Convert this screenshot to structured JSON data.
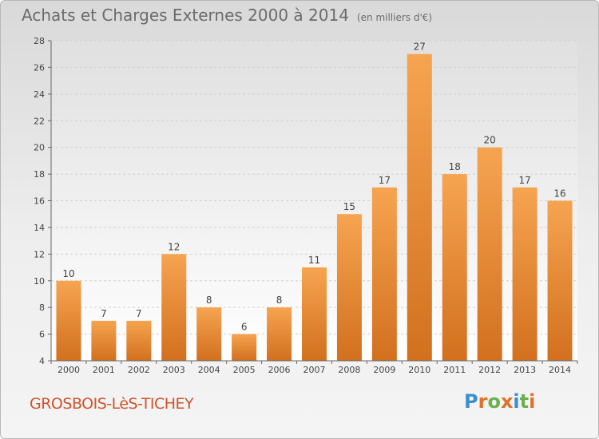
{
  "title": "Achats et Charges Externes 2000 à 2014",
  "subtitle": "(en milliers d'€)",
  "town": "GROSBOIS-LèS-TICHEY",
  "logo": {
    "letters": [
      "P",
      "r",
      "o",
      "x",
      "i",
      "t",
      "i"
    ],
    "colors": [
      "#3a8fd0",
      "#e0702a",
      "#6ab04c",
      "#e0702a",
      "#3a8fd0",
      "#6ab04c",
      "#e0702a"
    ]
  },
  "chart_data": {
    "type": "bar",
    "categories": [
      "2000",
      "2001",
      "2002",
      "2003",
      "2004",
      "2005",
      "2006",
      "2007",
      "2008",
      "2009",
      "2010",
      "2011",
      "2012",
      "2013",
      "2014"
    ],
    "values": [
      10,
      7,
      7,
      12,
      8,
      6,
      8,
      11,
      15,
      17,
      27,
      18,
      20,
      17,
      16
    ],
    "ylim": [
      4,
      28
    ],
    "yticks": [
      4,
      6,
      8,
      10,
      12,
      14,
      16,
      18,
      20,
      22,
      24,
      26,
      28
    ],
    "grid": true,
    "bar_color": "#f0913a"
  }
}
